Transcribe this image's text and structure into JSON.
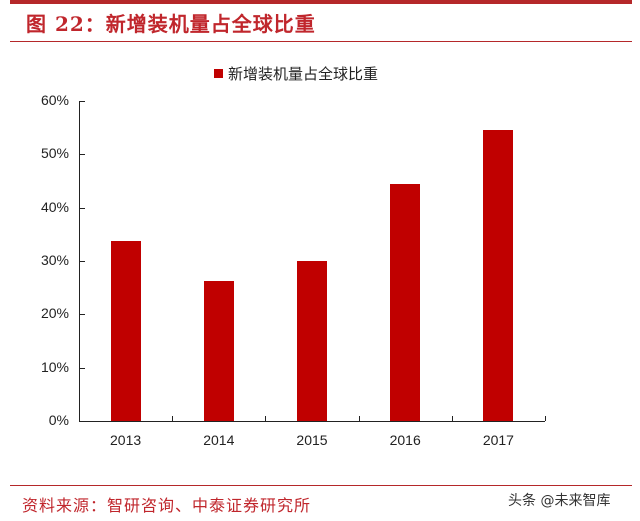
{
  "header": {
    "figure_title": "图 22：新增装机量占全球比重"
  },
  "footer": {
    "source": "资料来源：智研咨询、中泰证券研究所",
    "watermark": "头条 @未来智库"
  },
  "colors": {
    "accent": "#c0262c",
    "bar": "#c00000",
    "axis": "#222222"
  },
  "chart_data": {
    "type": "bar",
    "title": "图 22：新增装机量占全球比重",
    "categories": [
      "2013",
      "2014",
      "2015",
      "2016",
      "2017"
    ],
    "series": [
      {
        "name": "新增装机量占全球比重",
        "values": [
          33.7,
          26.3,
          30.0,
          44.4,
          54.6
        ],
        "color": "#c00000"
      }
    ],
    "values": [
      33.7,
      26.3,
      30.0,
      44.4,
      54.6
    ],
    "xlabel": "",
    "ylabel": "",
    "ylim": [
      0,
      60
    ],
    "yticks": [
      "0%",
      "10%",
      "20%",
      "30%",
      "40%",
      "50%",
      "60%"
    ],
    "grid": false,
    "legend_position": "top"
  }
}
